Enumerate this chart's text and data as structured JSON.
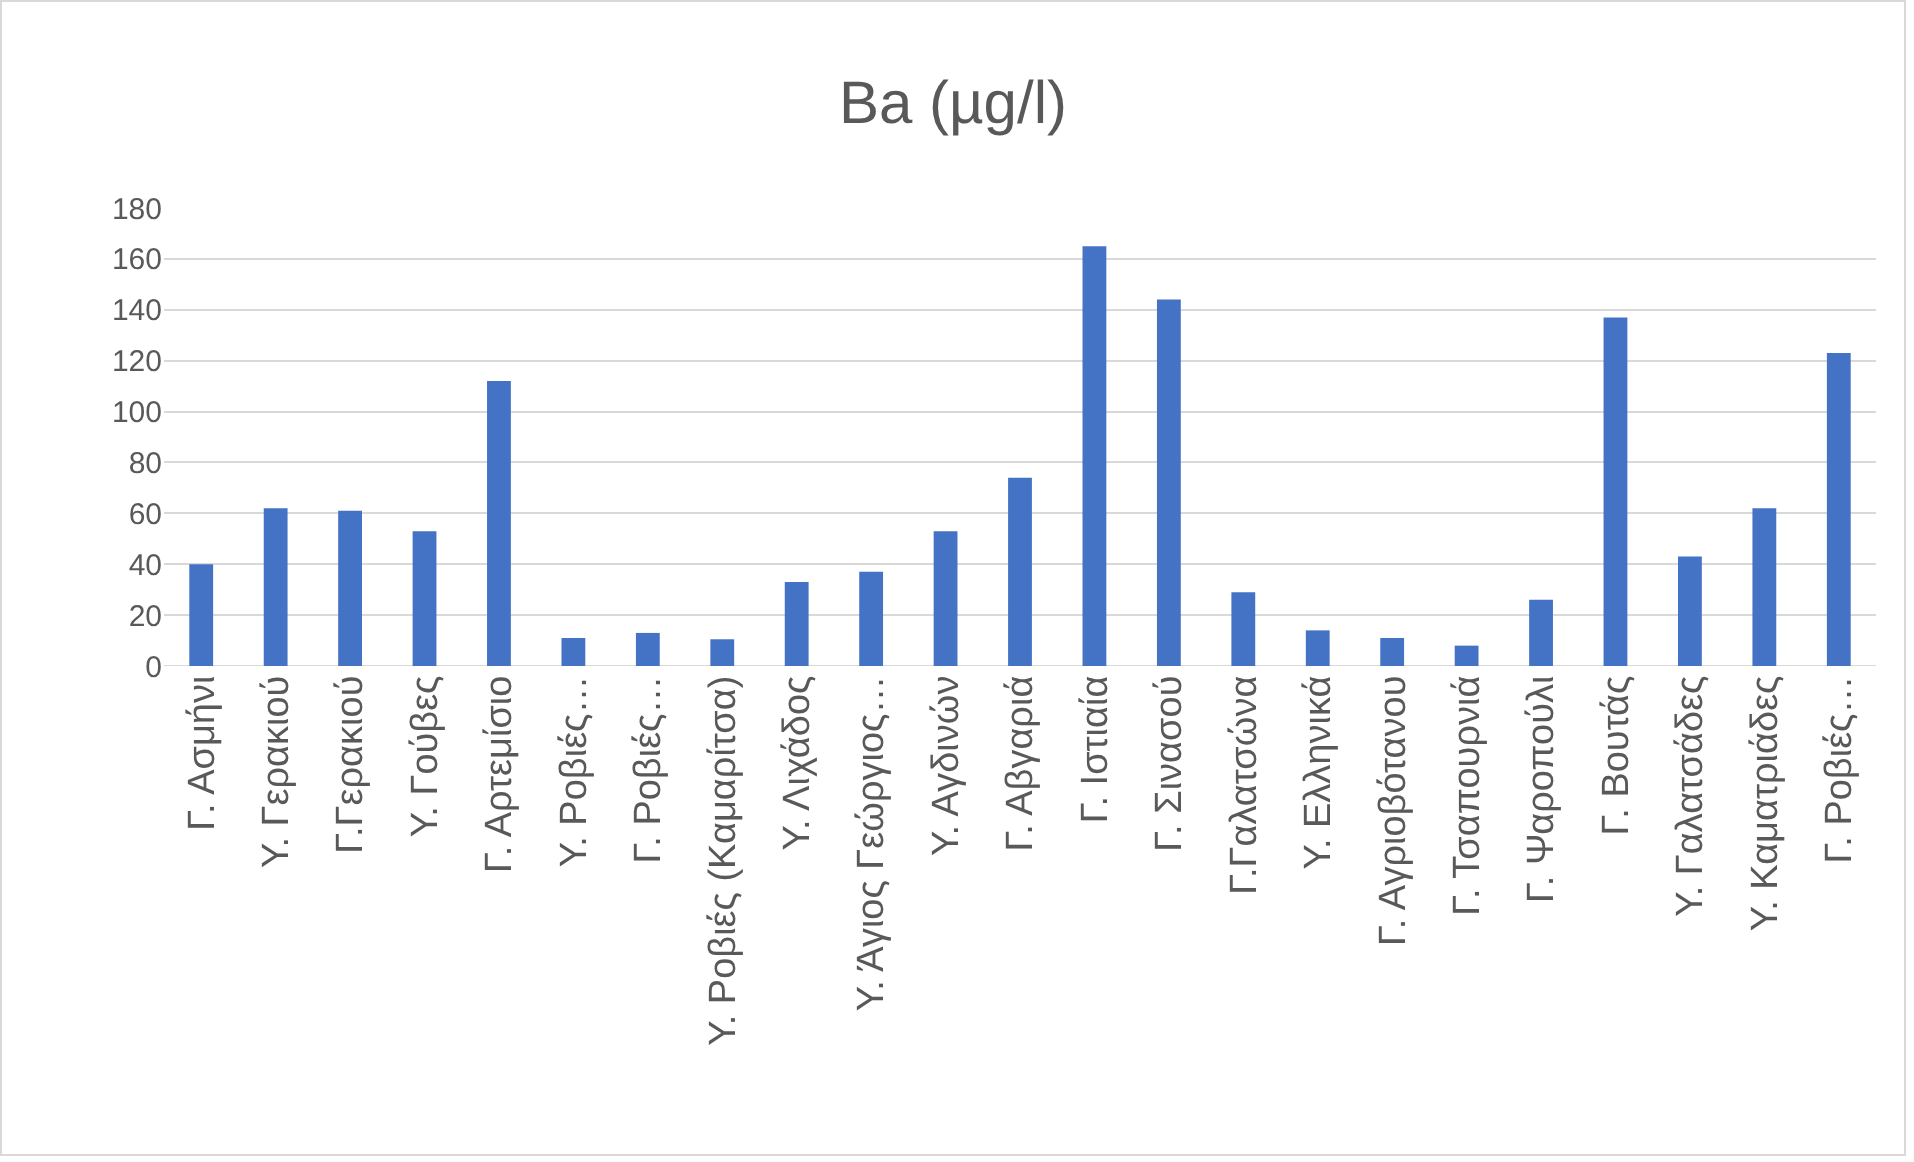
{
  "chart_data": {
    "type": "bar",
    "title": "Ba (µg/l)",
    "categories": [
      "Γ. Ασμήνι",
      "Υ. Γερακιού",
      "Γ.Γερακιού",
      "Υ. Γούβες",
      "Γ. Αρτεμίσιο",
      "Υ. Ροβιές…",
      "Γ. Ροβιές…",
      "Υ. Ροβιές (Καμαρίτσα)",
      "Υ. Λιχάδος",
      "Υ. Άγιος Γεώργιος…",
      "Υ. Αγδινών",
      "Γ. Αβγαριά",
      "Γ. Ιστιαία",
      "Γ. Σινασού",
      "Γ.Γαλατσώνα",
      "Υ. Ελληνικά",
      "Γ. Αγριοβότανου",
      "Γ. Τσαπουρνιά",
      "Γ. Ψαροπούλι",
      "Γ. Βουτάς",
      "Υ. Γαλατσάδες",
      "Υ. Καματριάδες",
      "Γ. Ροβιές…"
    ],
    "values": [
      40,
      62,
      61,
      53,
      112,
      11,
      13,
      10.5,
      33,
      37,
      53,
      74,
      165,
      144,
      29,
      14,
      11,
      8,
      26,
      137,
      43,
      62,
      123
    ],
    "color": "#4472c4",
    "ylim": [
      0,
      180
    ],
    "yticks": [
      0,
      20,
      40,
      60,
      80,
      100,
      120,
      140,
      160,
      180
    ],
    "grid": "y"
  }
}
